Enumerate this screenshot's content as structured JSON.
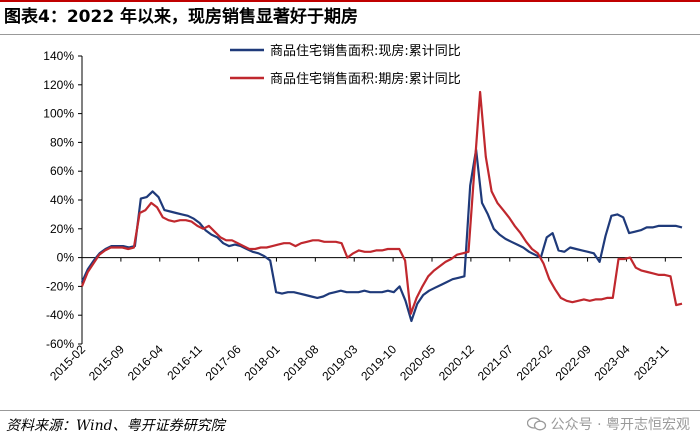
{
  "header": {
    "title": "图表4：2022 年以来，现房销售显著好于期房"
  },
  "footer": {
    "source": "资料来源：Wind、粤开证券研究院",
    "watermark": "公众号 · 粤开志恒宏观"
  },
  "chart_data": {
    "type": "line",
    "title": "图表4：2022 年以来，现房销售显著好于期房",
    "xlabel": "",
    "ylabel": "",
    "ylim": [
      -60,
      140
    ],
    "yticks": [
      -60,
      -40,
      -20,
      0,
      20,
      40,
      60,
      80,
      100,
      120,
      140
    ],
    "ytick_labels": [
      "-60%",
      "-40%",
      "-20%",
      "0%",
      "20%",
      "40%",
      "60%",
      "80%",
      "100%",
      "120%",
      "140%"
    ],
    "x_start": "2015-02",
    "x_end": "2024-02",
    "xtick_labels": [
      "2015-02",
      "2015-09",
      "2016-04",
      "2016-11",
      "2017-06",
      "2018-01",
      "2018-08",
      "2019-03",
      "2019-10",
      "2020-05",
      "2020-12",
      "2021-07",
      "2022-02",
      "2022-09",
      "2023-04",
      "2023-11"
    ],
    "legend": "top-center",
    "grid": false,
    "series": [
      {
        "name": "商品住宅销售面积:现房:累计同比",
        "color": "#1f3a7a",
        "values": [
          -17,
          -8,
          -2,
          3,
          6,
          8,
          8,
          8,
          7,
          8,
          41,
          42,
          46,
          42,
          33,
          32,
          31,
          30,
          29,
          27,
          24,
          19,
          16,
          14,
          10,
          8,
          9,
          8,
          6,
          4,
          3,
          1,
          -2,
          -24,
          -25,
          -24,
          -24,
          -25,
          -26,
          -27,
          -28,
          -27,
          -25,
          -24,
          -23,
          -24,
          -24,
          -24,
          -23,
          -24,
          -24,
          -24,
          -23,
          -24,
          -20,
          -30,
          -44,
          -32,
          -26,
          -23,
          -21,
          -19,
          -17,
          -15,
          -14,
          -13,
          50,
          75,
          38,
          30,
          20,
          16,
          13,
          11,
          9,
          7,
          4,
          2,
          0,
          14,
          17,
          5,
          4,
          7,
          6,
          5,
          4,
          3,
          -3,
          15,
          29,
          30,
          28,
          17,
          18,
          19,
          21,
          21,
          22,
          22,
          22,
          22,
          21
        ]
      },
      {
        "name": "商品住宅销售面积:期房:累计同比",
        "color": "#c0282e",
        "values": [
          -20,
          -10,
          -4,
          2,
          5,
          7,
          7,
          7,
          6,
          7,
          31,
          33,
          38,
          35,
          28,
          26,
          25,
          26,
          26,
          25,
          22,
          20,
          22,
          18,
          14,
          12,
          12,
          10,
          8,
          6,
          6,
          7,
          7,
          8,
          9,
          10,
          10,
          8,
          10,
          11,
          12,
          12,
          11,
          11,
          11,
          10,
          0,
          3,
          5,
          4,
          4,
          5,
          5,
          6,
          6,
          6,
          -2,
          -39,
          -28,
          -20,
          -13,
          -9,
          -6,
          -3,
          -1,
          2,
          3,
          4,
          60,
          115,
          70,
          46,
          38,
          33,
          28,
          22,
          17,
          11,
          6,
          3,
          -4,
          -15,
          -22,
          -28,
          -30,
          -31,
          -30,
          -29,
          -30,
          -29,
          -29,
          -28,
          -28,
          -1,
          -1,
          0,
          -7,
          -9,
          -10,
          -11,
          -12,
          -12,
          -13,
          -33,
          -32
        ]
      }
    ]
  }
}
